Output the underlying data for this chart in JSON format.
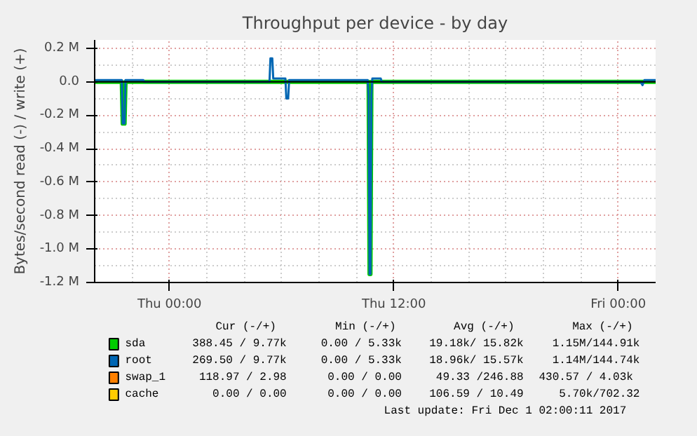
{
  "chart_data": {
    "type": "line",
    "title": "Throughput per device - by day",
    "ylabel": "Bytes/second read (-) / write (+)",
    "xlim": [
      "2017-11-29T20:00",
      "2017-12-01T02:00"
    ],
    "xticks": [
      {
        "value": "2017-11-30T00:00",
        "label": "Thu 00:00"
      },
      {
        "value": "2017-11-30T12:00",
        "label": "Thu 12:00"
      },
      {
        "value": "2017-12-01T00:00",
        "label": "Fri 00:00"
      }
    ],
    "ylim": [
      -1.2,
      0.25
    ],
    "yticks": [
      {
        "value": 0.2,
        "label": "0.2 M"
      },
      {
        "value": 0,
        "label": "0.0"
      },
      {
        "value": -0.2,
        "label": "-0.2 M"
      },
      {
        "value": -0.4,
        "label": "-0.4 M"
      },
      {
        "value": -0.6,
        "label": "-0.6 M"
      },
      {
        "value": -0.8,
        "label": "-0.8 M"
      },
      {
        "value": -1.0,
        "label": "-1.0 M"
      },
      {
        "value": -1.2,
        "label": "-1.2 M"
      }
    ],
    "grid": true,
    "legend": "bottom",
    "ref_lines": [
      {
        "axis": "y",
        "value": 0,
        "color": "#000000"
      }
    ],
    "series": [
      {
        "name": "sda",
        "color": "#00cc00",
        "x": [
          "2017-11-29T20:00",
          "2017-11-29T21:27",
          "2017-11-29T21:30",
          "2017-11-29T21:36",
          "2017-11-29T21:39",
          "2017-11-30T10:39",
          "2017-11-30T10:42",
          "2017-11-30T10:45",
          "2017-11-30T10:48",
          "2017-12-01T02:00"
        ],
        "values": [
          0,
          0,
          -0.25,
          -0.25,
          0,
          0,
          -1.15,
          -1.15,
          0,
          0
        ]
      },
      {
        "name": "root",
        "color": "#0066b3",
        "x": [
          "2017-11-29T20:00",
          "2017-11-29T21:27",
          "2017-11-29T21:30",
          "2017-11-29T21:36",
          "2017-11-29T21:39",
          "2017-11-29T22:36",
          "2017-11-29T22:39",
          "2017-11-30T05:21",
          "2017-11-30T05:24",
          "2017-11-30T05:30",
          "2017-11-30T05:33",
          "2017-11-30T06:12",
          "2017-11-30T06:15",
          "2017-11-30T06:21",
          "2017-11-30T06:24",
          "2017-11-30T10:36",
          "2017-11-30T10:39",
          "2017-11-30T10:42",
          "2017-11-30T10:45",
          "2017-11-30T10:48",
          "2017-11-30T10:51",
          "2017-11-30T11:18",
          "2017-11-30T11:21",
          "2017-12-01T01:12",
          "2017-12-01T01:18",
          "2017-12-01T01:24",
          "2017-12-01T01:30",
          "2017-12-01T02:00"
        ],
        "values": [
          0.01,
          0.01,
          -0.25,
          -0.25,
          0.01,
          0.01,
          0,
          0,
          0.14,
          0.14,
          0.02,
          0.02,
          -0.1,
          -0.1,
          0.01,
          0.01,
          -0.08,
          -1.15,
          -1.15,
          -0.08,
          0.02,
          0.02,
          0,
          0,
          -0.02,
          0.01,
          0.01,
          0.01
        ]
      },
      {
        "name": "swap_1",
        "color": "#ff8000"
      },
      {
        "name": "cache",
        "color": "#ffcc00"
      }
    ],
    "annotations": [
      "Cur (-/+)",
      "Min (-/+)",
      "Avg (-/+)",
      "Max (-/+)",
      "388.45 /  9.77k",
      "0.00 /  5.33k",
      "19.18k/ 15.82k",
      "1.15M/144.91k",
      "269.50 /  9.77k",
      "0.00 /  5.33k",
      "18.96k/ 15.57k",
      "1.14M/144.74k",
      "118.97 /  2.98",
      "0.00 /  0.00",
      "49.33 /246.88",
      "430.57 /  4.03k",
      "0.00 /  0.00",
      "0.00 /  0.00",
      "106.59 / 10.49",
      "5.70k/702.32",
      "Last update:  Fri Dec  1 02:00:11 2017"
    ]
  }
}
